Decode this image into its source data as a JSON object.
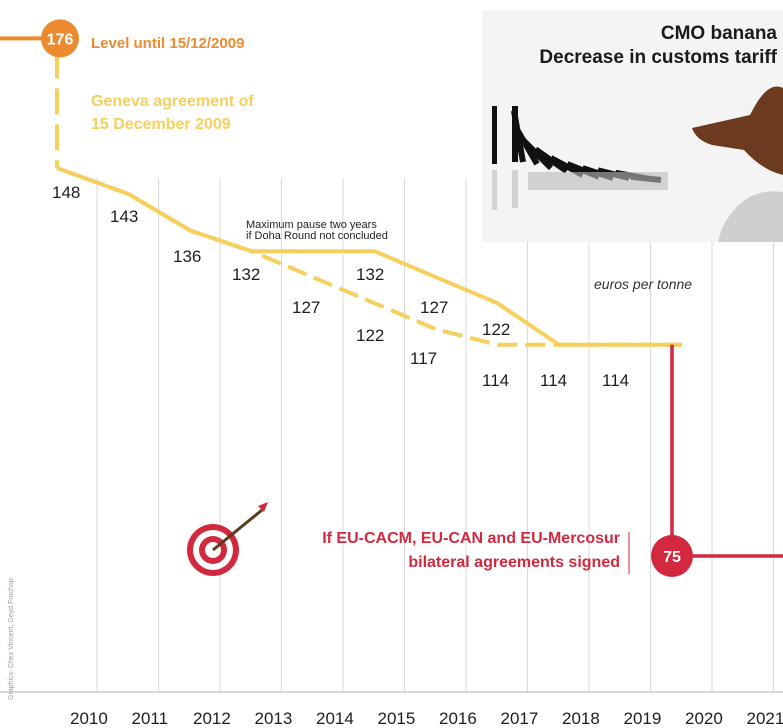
{
  "title": {
    "line1": "CMO banana",
    "line2": "Decrease in customs tariff"
  },
  "annotations": {
    "level_label": "Level until 15/12/2009",
    "geneva_line1": "Geneva agreement of",
    "geneva_line2": "15 December 2009",
    "pause_line1": "Maximum pause two years",
    "pause_line2": "if Doha Round not concluded",
    "units": "euros per tonne",
    "bilateral_line1": "If EU-CACM, EU-CAN and EU-Mercosur",
    "bilateral_line2": "bilateral agreements signed",
    "credit": "Graphics: Chez Vincent, Geyd Fruchop"
  },
  "colors": {
    "orange": "#ec8a2f",
    "yellow": "#f6cf5e",
    "red": "#d2293f",
    "grid": "#d9d9d9"
  },
  "chart_data": {
    "type": "line",
    "x": [
      2010,
      2011,
      2012,
      2013,
      2014,
      2015,
      2016,
      2017,
      2018,
      2019,
      2020,
      2021
    ],
    "start_level": 176,
    "series": [
      {
        "values": [
          148,
          143,
          136,
          132,
          132,
          132,
          127,
          122,
          114,
          114,
          114,
          null
        ]
      },
      {
        "values": [
          148,
          143,
          136,
          132,
          127,
          122,
          117,
          114,
          114,
          114,
          114,
          null
        ]
      },
      {
        "values": [
          null,
          null,
          null,
          null,
          null,
          null,
          null,
          null,
          null,
          null,
          75,
          75
        ]
      }
    ],
    "point_labels": [
      {
        "x": 2010,
        "text": "148"
      },
      {
        "x": 2011,
        "text": "143"
      },
      {
        "x": 2012,
        "text": "136"
      },
      {
        "x": 2013,
        "text": "132"
      },
      {
        "x": 2014,
        "text": "127"
      },
      {
        "x": 2015,
        "text": "132"
      },
      {
        "x": 2015,
        "text": "122"
      },
      {
        "x": 2016,
        "text": "127"
      },
      {
        "x": 2016,
        "text": "117"
      },
      {
        "x": 2017,
        "text": "122"
      },
      {
        "x": 2017,
        "text": "114"
      },
      {
        "x": 2018,
        "text": "114"
      },
      {
        "x": 2019,
        "text": "114"
      }
    ],
    "badges": [
      {
        "text": "176"
      },
      {
        "text": "75"
      }
    ],
    "x_tick_labels": [
      "2010",
      "2011",
      "2012",
      "2013",
      "2014",
      "2015",
      "2016",
      "2017",
      "2018",
      "2019",
      "2020",
      "2021"
    ]
  }
}
